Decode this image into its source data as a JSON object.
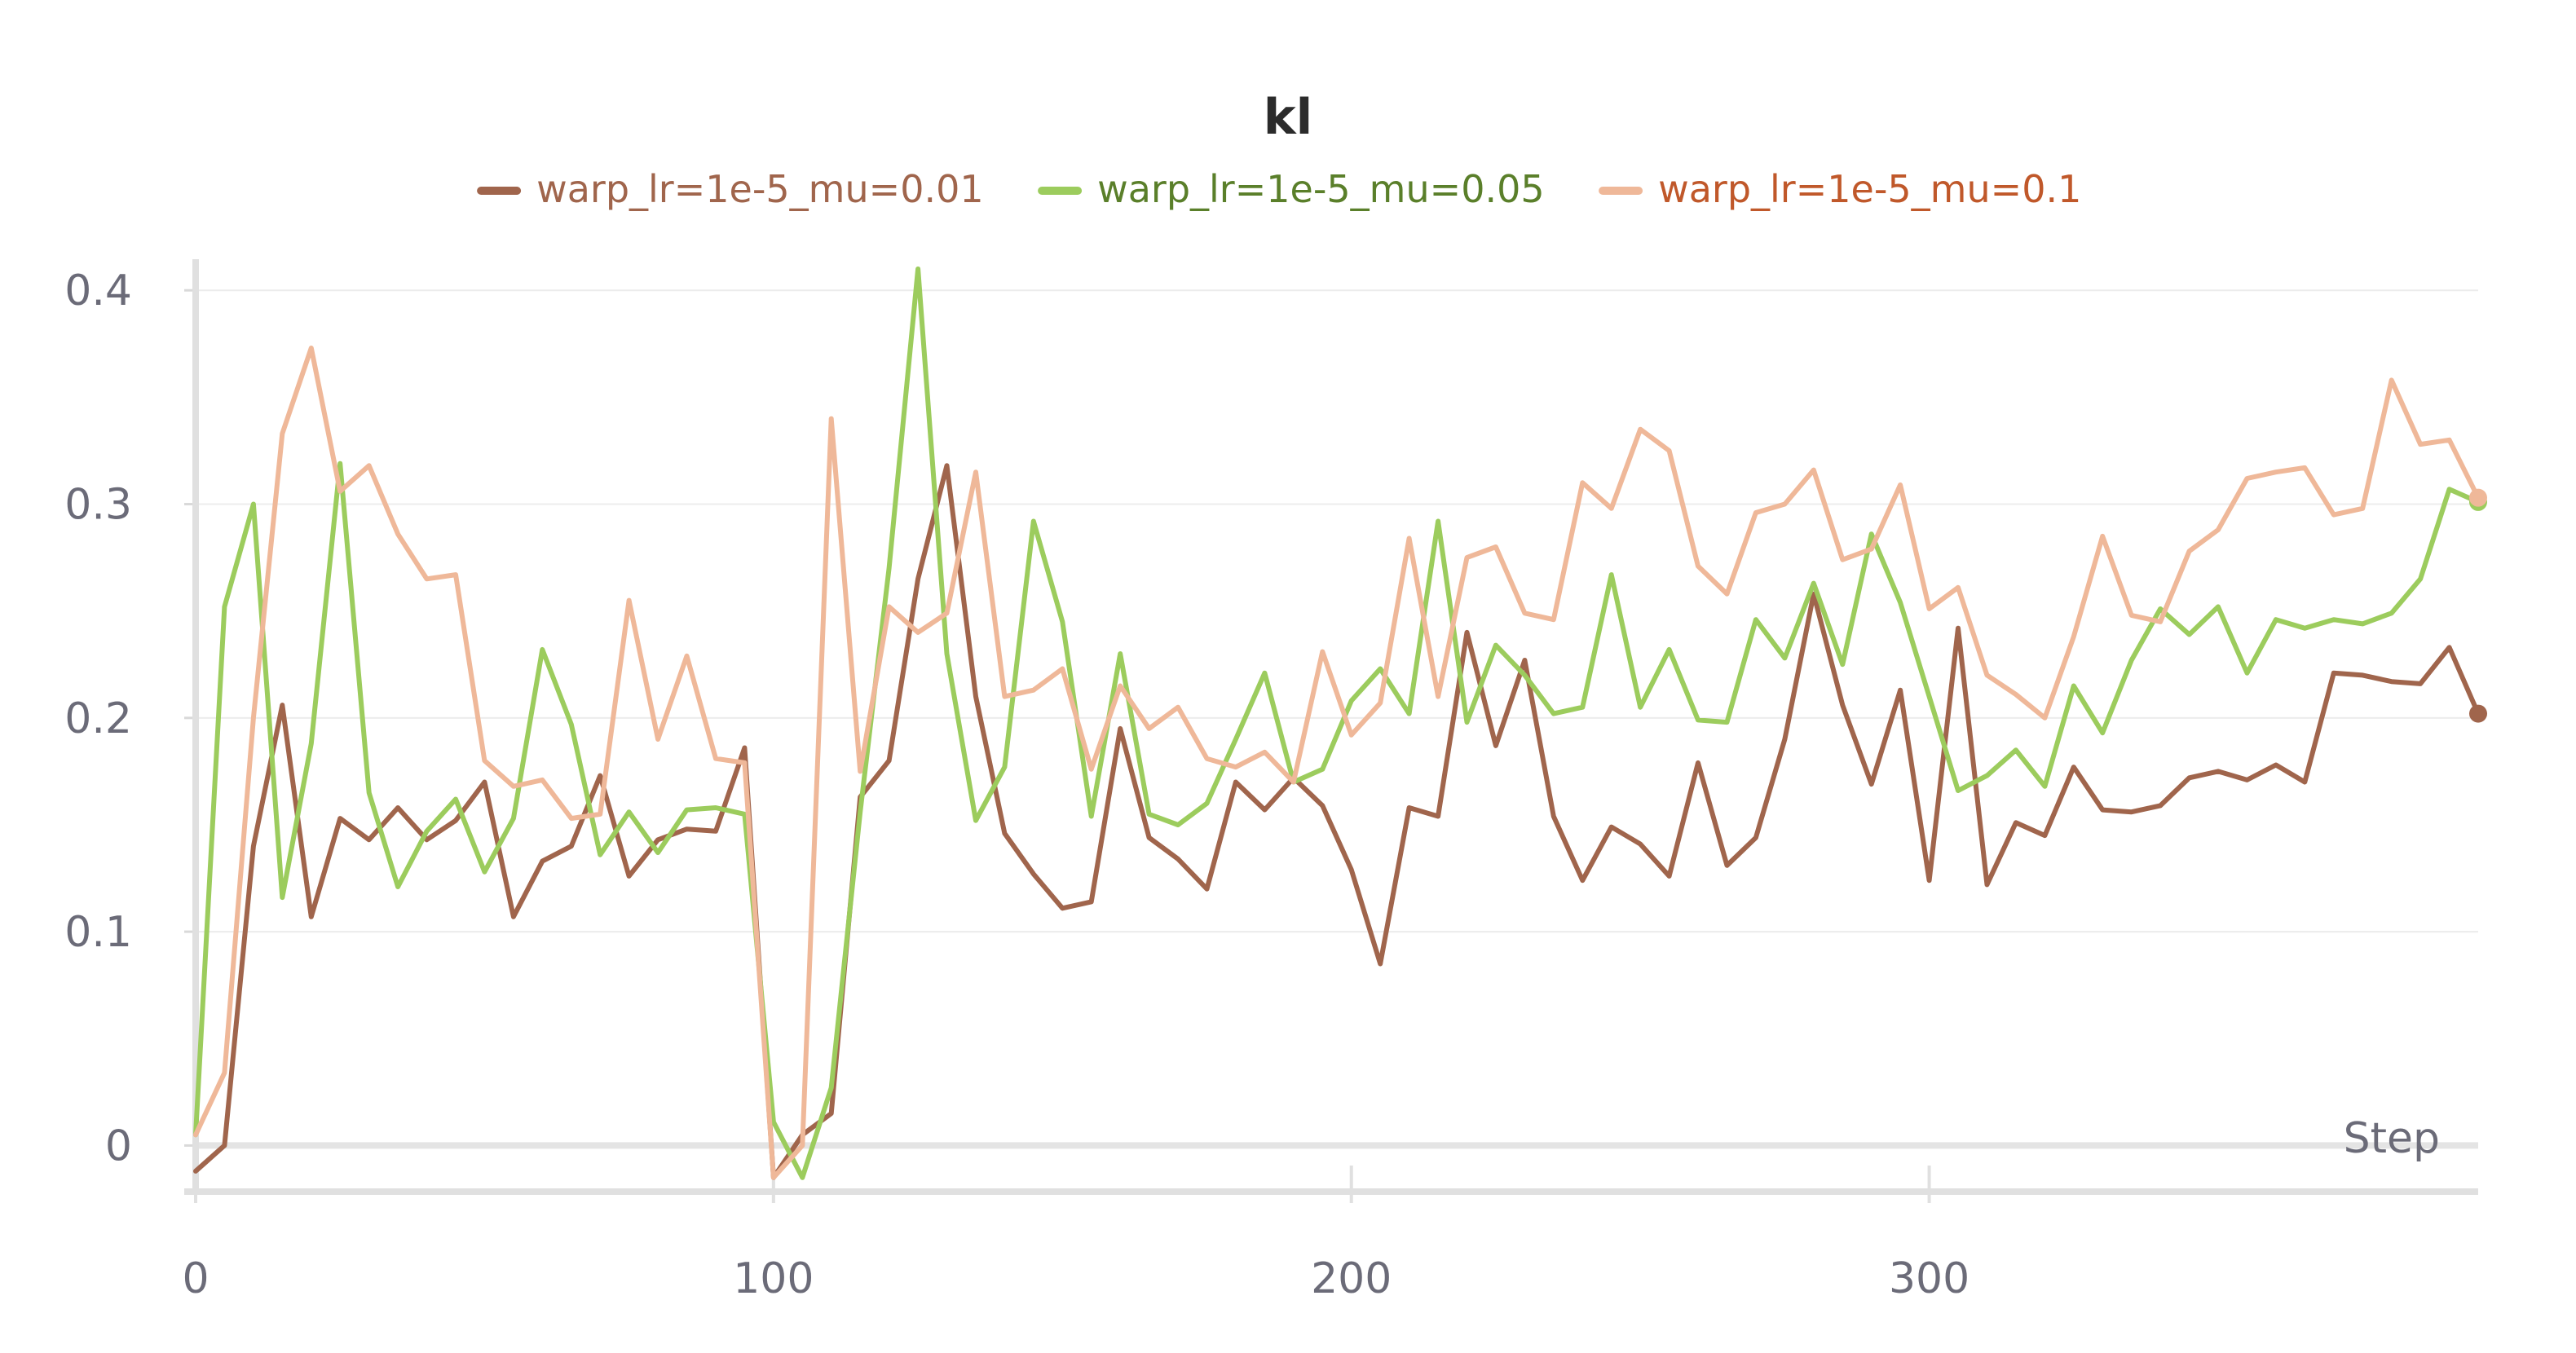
{
  "chart_data": {
    "type": "line",
    "title": "kl",
    "xlabel": "Step",
    "ylabel": "",
    "xlim": [
      0,
      395
    ],
    "ylim": [
      -0.017,
      0.41
    ],
    "xticks": [
      0,
      100,
      200,
      300
    ],
    "yticks": [
      0,
      0.1,
      0.2,
      0.3,
      0.4
    ],
    "grid": true,
    "legend_position": "top",
    "series": [
      {
        "name": "warp_lr=1e-5_mu=0.01",
        "color": "#a0654c",
        "label_color": "#a0654c",
        "end_marker": true,
        "x": [
          0,
          5,
          10,
          15,
          20,
          25,
          30,
          35,
          40,
          45,
          50,
          55,
          60,
          65,
          70,
          75,
          80,
          85,
          90,
          95,
          100,
          105,
          110,
          115,
          120,
          125,
          130,
          135,
          140,
          145,
          150,
          155,
          160,
          165,
          170,
          175,
          180,
          185,
          190,
          195,
          200,
          205,
          210,
          215,
          220,
          225,
          230,
          235,
          240,
          245,
          250,
          255,
          260,
          265,
          270,
          275,
          280,
          285,
          290,
          295,
          300,
          305,
          310,
          315,
          320,
          325,
          330,
          335,
          340,
          345,
          350,
          355,
          360,
          365,
          370,
          375,
          380,
          385,
          390,
          395
        ],
        "y": [
          -0.012,
          0.0,
          0.14,
          0.206,
          0.107,
          0.153,
          0.143,
          0.158,
          0.143,
          0.152,
          0.17,
          0.107,
          0.133,
          0.14,
          0.173,
          0.126,
          0.143,
          0.148,
          0.147,
          0.186,
          -0.015,
          0.005,
          0.015,
          0.163,
          0.18,
          0.265,
          0.318,
          0.21,
          0.146,
          0.127,
          0.111,
          0.114,
          0.195,
          0.144,
          0.134,
          0.12,
          0.17,
          0.157,
          0.172,
          0.159,
          0.129,
          0.085,
          0.158,
          0.154,
          0.24,
          0.187,
          0.227,
          0.154,
          0.124,
          0.149,
          0.141,
          0.126,
          0.179,
          0.131,
          0.144,
          0.19,
          0.258,
          0.206,
          0.169,
          0.213,
          0.124,
          0.242,
          0.122,
          0.151,
          0.145,
          0.177,
          0.157,
          0.156,
          0.159,
          0.172,
          0.175,
          0.171,
          0.178,
          0.17,
          0.221,
          0.22,
          0.217,
          0.216,
          0.233,
          0.202
        ]
      },
      {
        "name": "warp_lr=1e-5_mu=0.05",
        "color": "#9ccc5d",
        "label_color": "#5a7f2a",
        "end_marker": true,
        "x": [
          0,
          5,
          10,
          15,
          20,
          25,
          30,
          35,
          40,
          45,
          50,
          55,
          60,
          65,
          70,
          75,
          80,
          85,
          90,
          95,
          100,
          105,
          110,
          115,
          120,
          125,
          130,
          135,
          140,
          145,
          150,
          155,
          160,
          165,
          170,
          175,
          180,
          185,
          190,
          195,
          200,
          205,
          210,
          215,
          220,
          225,
          230,
          235,
          240,
          245,
          250,
          255,
          260,
          265,
          270,
          275,
          280,
          285,
          290,
          295,
          300,
          305,
          310,
          315,
          320,
          325,
          330,
          335,
          340,
          345,
          350,
          355,
          360,
          365,
          370,
          375,
          380,
          385,
          390,
          395
        ],
        "y": [
          0.005,
          0.252,
          0.3,
          0.116,
          0.188,
          0.319,
          0.165,
          0.121,
          0.147,
          0.162,
          0.128,
          0.153,
          0.232,
          0.197,
          0.136,
          0.156,
          0.137,
          0.157,
          0.158,
          0.155,
          0.011,
          -0.015,
          0.027,
          0.156,
          0.27,
          0.41,
          0.23,
          0.152,
          0.177,
          0.292,
          0.245,
          0.154,
          0.23,
          0.155,
          0.15,
          0.16,
          0.19,
          0.221,
          0.17,
          0.176,
          0.208,
          0.223,
          0.202,
          0.292,
          0.198,
          0.234,
          0.22,
          0.202,
          0.205,
          0.267,
          0.205,
          0.232,
          0.199,
          0.198,
          0.246,
          0.228,
          0.263,
          0.225,
          0.286,
          0.254,
          0.21,
          0.166,
          0.173,
          0.185,
          0.168,
          0.215,
          0.193,
          0.227,
          0.251,
          0.239,
          0.252,
          0.221,
          0.246,
          0.242,
          0.246,
          0.244,
          0.249,
          0.265,
          0.307,
          0.301
        ]
      },
      {
        "name": "warp_lr=1e-5_mu=0.1",
        "color": "#efb899",
        "label_color": "#c0582a",
        "end_marker": true,
        "x": [
          0,
          5,
          10,
          15,
          20,
          25,
          30,
          35,
          40,
          45,
          50,
          55,
          60,
          65,
          70,
          75,
          80,
          85,
          90,
          95,
          100,
          105,
          110,
          115,
          120,
          125,
          130,
          135,
          140,
          145,
          150,
          155,
          160,
          165,
          170,
          175,
          180,
          185,
          190,
          195,
          200,
          205,
          210,
          215,
          220,
          225,
          230,
          235,
          240,
          245,
          250,
          255,
          260,
          265,
          270,
          275,
          280,
          285,
          290,
          295,
          300,
          305,
          310,
          315,
          320,
          325,
          330,
          335,
          340,
          345,
          350,
          355,
          360,
          365,
          370,
          375,
          380,
          385,
          390,
          395
        ],
        "y": [
          0.005,
          0.034,
          0.2,
          0.333,
          0.373,
          0.306,
          0.318,
          0.286,
          0.265,
          0.267,
          0.18,
          0.168,
          0.171,
          0.153,
          0.155,
          0.255,
          0.19,
          0.229,
          0.181,
          0.179,
          -0.015,
          0.0,
          0.34,
          0.175,
          0.252,
          0.24,
          0.249,
          0.315,
          0.21,
          0.213,
          0.223,
          0.176,
          0.215,
          0.195,
          0.205,
          0.181,
          0.177,
          0.184,
          0.17,
          0.231,
          0.192,
          0.207,
          0.284,
          0.21,
          0.275,
          0.28,
          0.249,
          0.246,
          0.31,
          0.298,
          0.335,
          0.325,
          0.271,
          0.258,
          0.296,
          0.3,
          0.316,
          0.274,
          0.279,
          0.309,
          0.251,
          0.261,
          0.22,
          0.211,
          0.2,
          0.238,
          0.285,
          0.248,
          0.245,
          0.278,
          0.288,
          0.312,
          0.315,
          0.317,
          0.295,
          0.298,
          0.358,
          0.328,
          0.33,
          0.303
        ]
      }
    ]
  }
}
